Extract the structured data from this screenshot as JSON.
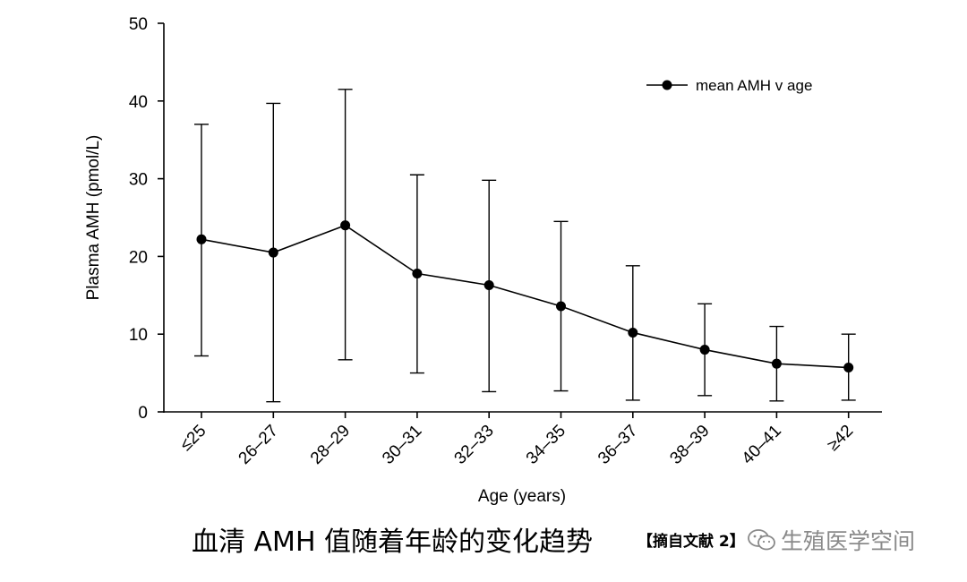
{
  "chart_data": {
    "type": "line",
    "ylabel": "Plasma AMH (pmol/L)",
    "xlabel": "Age (years)",
    "ylim": [
      0,
      50
    ],
    "yticks": [
      "0",
      "10",
      "20",
      "30",
      "40",
      "50"
    ],
    "categories": [
      "≤25",
      "26–27",
      "28–29",
      "30–31",
      "32–33",
      "34–35",
      "36–37",
      "38–39",
      "40–41",
      "≥42"
    ],
    "series": [
      {
        "name": "mean AMH v age",
        "values": [
          22.2,
          20.5,
          24.0,
          17.8,
          16.3,
          13.6,
          10.2,
          8.0,
          6.2,
          5.7
        ],
        "error_low": [
          7.2,
          1.3,
          6.7,
          5.0,
          2.6,
          2.7,
          1.5,
          2.1,
          1.4,
          1.5
        ],
        "error_high": [
          37.0,
          39.7,
          41.5,
          30.5,
          29.8,
          24.5,
          18.8,
          13.9,
          11.0,
          10.0
        ]
      }
    ],
    "legend_position": "top-right"
  },
  "caption": {
    "text": "血清 AMH 值随着年龄的变化趋势",
    "citation": "【摘自文献 2】",
    "watermark": "生殖医学空间"
  }
}
